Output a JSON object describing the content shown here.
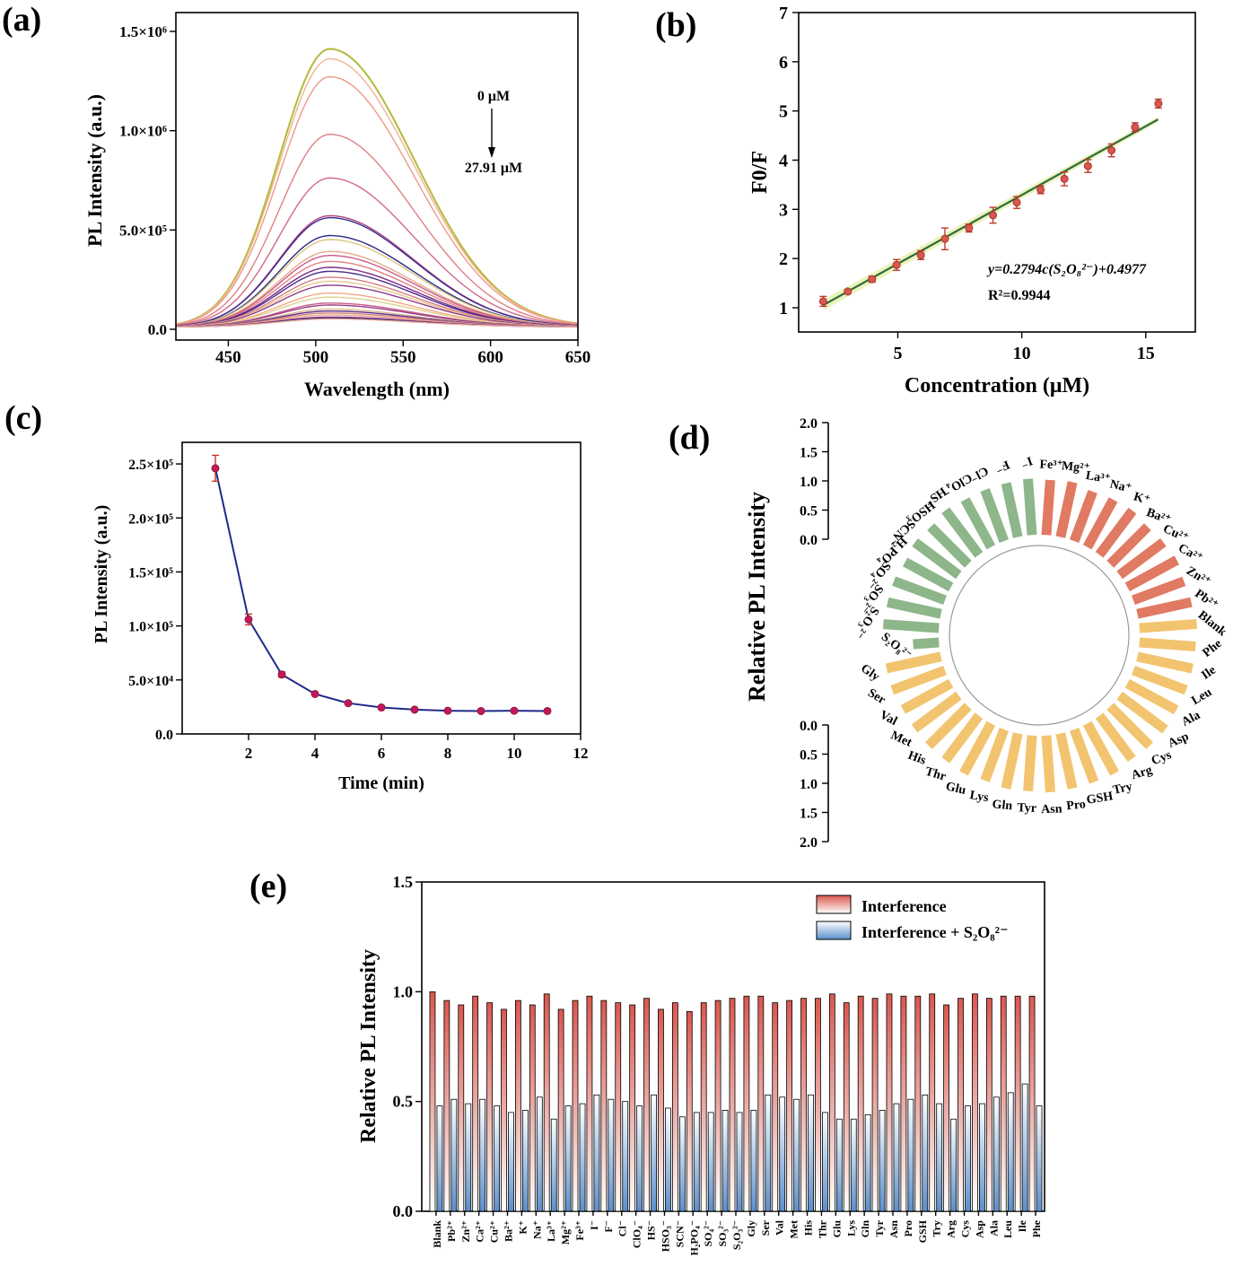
{
  "panel_labels": {
    "a": "(a)",
    "b": "(b)",
    "c": "(c)",
    "d": "(d)",
    "e": "(e)"
  },
  "chart_data": [
    {
      "id": "a",
      "type": "line",
      "xlabel": "Wavelength (nm)",
      "ylabel": "PL Intensity (a.u.)",
      "xlim": [
        420,
        650
      ],
      "ylim": [
        0,
        1500000
      ],
      "xticks": [
        "450",
        "500",
        "550",
        "600",
        "650"
      ],
      "xtick_values": [
        450,
        500,
        550,
        600,
        650
      ],
      "yticks": [
        "0.0",
        "5.0×10⁵",
        "1.0×10⁶",
        "1.5×10⁶"
      ],
      "ytick_values": [
        0,
        500000,
        1000000,
        1500000
      ],
      "annotation": {
        "top": "0 μM",
        "bottom": "27.91 μM"
      },
      "peak_center_nm": 508,
      "series_peaks": [
        1400000,
        1350000,
        1260000,
        970000,
        750000,
        560000,
        550000,
        460000,
        440000,
        380000,
        360000,
        330000,
        300000,
        280000,
        250000,
        230000,
        210000,
        170000,
        150000,
        120000,
        110000,
        90000,
        80000,
        70000,
        60000,
        50000,
        45000,
        40000
      ],
      "series_colors": [
        "#b5b83a",
        "#f0b48f",
        "#ec9a86",
        "#e07f87",
        "#d16a86",
        "#b0457f",
        "#3c2d8f",
        "#2a2a88",
        "#d9c67a",
        "#e9a98c",
        "#c95a87",
        "#e58080",
        "#7a2a86",
        "#4a2c8c",
        "#d67a84",
        "#e8c58d",
        "#8e3b8b",
        "#f2a787",
        "#ddd08d",
        "#c75d88",
        "#9b3f86",
        "#e3b98f",
        "#5a2e8d",
        "#d3847f",
        "#e8a58b",
        "#b04a88",
        "#30297f",
        "#efb0a0"
      ]
    },
    {
      "id": "b",
      "type": "scatter",
      "xlabel": "Concentration (μM)",
      "ylabel": "F0/F",
      "xlim": [
        1,
        17
      ],
      "ylim": [
        0.5,
        7
      ],
      "xticks": [
        "5",
        "10",
        "15"
      ],
      "xtick_values": [
        5,
        10,
        15
      ],
      "yticks": [
        "1",
        "2",
        "3",
        "4",
        "5",
        "6",
        "7"
      ],
      "ytick_values": [
        1,
        2,
        3,
        4,
        5,
        6,
        7
      ],
      "x": [
        1.99,
        2.98,
        3.96,
        4.95,
        5.93,
        6.9,
        7.87,
        8.84,
        9.8,
        10.76,
        11.72,
        12.67,
        13.62,
        14.57,
        15.51
      ],
      "y": [
        1.13,
        1.33,
        1.58,
        1.87,
        2.07,
        2.4,
        2.62,
        2.88,
        3.14,
        3.4,
        3.62,
        3.88,
        4.2,
        4.67,
        5.15
      ],
      "yerr": [
        0.1,
        0.04,
        0.06,
        0.11,
        0.09,
        0.22,
        0.08,
        0.16,
        0.12,
        0.08,
        0.14,
        0.13,
        0.13,
        0.09,
        0.09
      ],
      "fit": {
        "slope": 0.2794,
        "intercept": 0.4977,
        "x_range": [
          2,
          15.5
        ]
      },
      "equation_text": "y=0.2794c(S₂O₈²⁻)+0.4977",
      "r2_text": "R²=0.9944"
    },
    {
      "id": "c",
      "type": "line",
      "xlabel": "Time (min)",
      "ylabel": "PL Intensity (a.u.)",
      "xlim": [
        0,
        12
      ],
      "ylim": [
        0,
        270000
      ],
      "xticks": [
        "2",
        "4",
        "6",
        "8",
        "10",
        "12"
      ],
      "xtick_values": [
        2,
        4,
        6,
        8,
        10,
        12
      ],
      "yticks": [
        "0.0",
        "5.0×10⁴",
        "1.0×10⁵",
        "1.5×10⁵",
        "2.0×10⁵",
        "2.5×10⁵"
      ],
      "ytick_values": [
        0,
        50000,
        100000,
        150000,
        200000,
        250000
      ],
      "x": [
        1,
        2,
        3,
        4,
        5,
        6,
        7,
        8,
        9,
        10,
        11
      ],
      "y": [
        246000,
        106000,
        55000,
        37000,
        28500,
        24500,
        22500,
        21500,
        21200,
        21500,
        21200
      ],
      "yerr": [
        12000,
        5000,
        2500,
        1000,
        800,
        500,
        500,
        500,
        400,
        400,
        400
      ]
    },
    {
      "id": "d",
      "type": "bar",
      "ylabel": "Relative PL Intensity",
      "scale_ticks": [
        "0.0",
        "0.5",
        "1.0",
        "1.5",
        "2.0"
      ],
      "scale_values": [
        0,
        0.5,
        1,
        1.5,
        2
      ],
      "categories": [
        "Fe³⁺",
        "Mg²⁺",
        "La³⁺",
        "Na⁺",
        "K⁺",
        "Ba²⁺",
        "Cu²⁺",
        "Ca²⁺",
        "Zn²⁺",
        "Pb²⁺",
        "Blank",
        "Phe",
        "Ile",
        "Leu",
        "Ala",
        "Asp",
        "Cys",
        "Arg",
        "Try",
        "GSH",
        "Pro",
        "Asn",
        "Tyr",
        "Gln",
        "Lys",
        "Glu",
        "Thr",
        "His",
        "Met",
        "Val",
        "Ser",
        "Gly",
        "S₂O₈²⁻",
        "S₂O₃²⁻",
        "SO₃²⁻",
        "SO₄²⁻",
        "H₂PO₄⁻",
        "SCN⁻",
        "HSO₃⁻",
        "HS⁻",
        "ClO₄⁻",
        "Cl⁻",
        "F⁻",
        "I⁻"
      ],
      "values": [
        0.96,
        0.98,
        0.92,
        0.94,
        0.96,
        0.92,
        0.95,
        0.98,
        0.94,
        0.96,
        1.0,
        0.98,
        0.98,
        0.98,
        0.97,
        0.99,
        0.97,
        0.94,
        0.99,
        0.98,
        0.98,
        0.99,
        0.97,
        0.98,
        0.95,
        0.99,
        0.97,
        0.97,
        0.96,
        0.95,
        0.98,
        0.97,
        0.45,
        0.97,
        0.95,
        0.95,
        0.91,
        0.95,
        0.92,
        0.97,
        0.94,
        0.95,
        0.96,
        0.98
      ],
      "groups": {
        "cations": [
          0,
          9
        ],
        "amino_acids": [
          10,
          31
        ],
        "anions": [
          32,
          43
        ]
      },
      "colors": {
        "cations": "#e07a62",
        "amino_acids": "#f2c46f",
        "anions": "#8db68a"
      }
    },
    {
      "id": "e",
      "type": "bar",
      "ylabel": "Relative PL Intensity",
      "ylim": [
        0,
        1.5
      ],
      "yticks": [
        "0.0",
        "0.5",
        "1.0",
        "1.5"
      ],
      "ytick_values": [
        0,
        0.5,
        1,
        1.5
      ],
      "legend": {
        "placement": "top-right",
        "entries": [
          "Interference",
          "Interference + S₂O₈²⁻"
        ]
      },
      "categories": [
        "Blank",
        "Pb²⁺",
        "Zn²⁺",
        "Ca²⁺",
        "Cu²⁺",
        "Ba²⁺",
        "K⁺",
        "Na⁺",
        "La³⁺",
        "Mg²⁺",
        "Fe³⁺",
        "I⁻",
        "F⁻",
        "Cl⁻",
        "ClO₄⁻",
        "HS⁻",
        "HSO₃⁻",
        "SCN⁻",
        "H₂PO₄⁻",
        "SO₄²⁻",
        "SO₃²⁻",
        "S₂O₃²⁻",
        "Gly",
        "Ser",
        "Val",
        "Met",
        "His",
        "Thr",
        "Glu",
        "Lys",
        "Gln",
        "Tyr",
        "Asn",
        "Pro",
        "GSH",
        "Try",
        "Arg",
        "Cys",
        "Asp",
        "Ala",
        "Leu",
        "Ile",
        "Phe"
      ],
      "series": [
        {
          "name": "Interference",
          "values": [
            1.0,
            0.96,
            0.94,
            0.98,
            0.95,
            0.92,
            0.96,
            0.94,
            0.99,
            0.92,
            0.96,
            0.98,
            0.96,
            0.95,
            0.94,
            0.97,
            0.92,
            0.95,
            0.91,
            0.95,
            0.96,
            0.97,
            0.98,
            0.98,
            0.95,
            0.96,
            0.97,
            0.97,
            0.99,
            0.95,
            0.98,
            0.97,
            0.99,
            0.98,
            0.98,
            0.99,
            0.94,
            0.97,
            0.99,
            0.97,
            0.98,
            0.98,
            0.98
          ]
        },
        {
          "name": "Interference + S₂O₈²⁻",
          "values": [
            0.48,
            0.51,
            0.49,
            0.51,
            0.48,
            0.45,
            0.46,
            0.52,
            0.42,
            0.48,
            0.49,
            0.53,
            0.51,
            0.5,
            0.48,
            0.53,
            0.47,
            0.43,
            0.45,
            0.45,
            0.46,
            0.45,
            0.46,
            0.53,
            0.52,
            0.51,
            0.53,
            0.45,
            0.42,
            0.42,
            0.44,
            0.46,
            0.49,
            0.51,
            0.53,
            0.49,
            0.42,
            0.48,
            0.49,
            0.52,
            0.54,
            0.58,
            0.48
          ]
        }
      ],
      "colors": {
        "Interference": "#d9574e",
        "Interference + S₂O₈²⁻": "#5b8fcc"
      }
    }
  ]
}
